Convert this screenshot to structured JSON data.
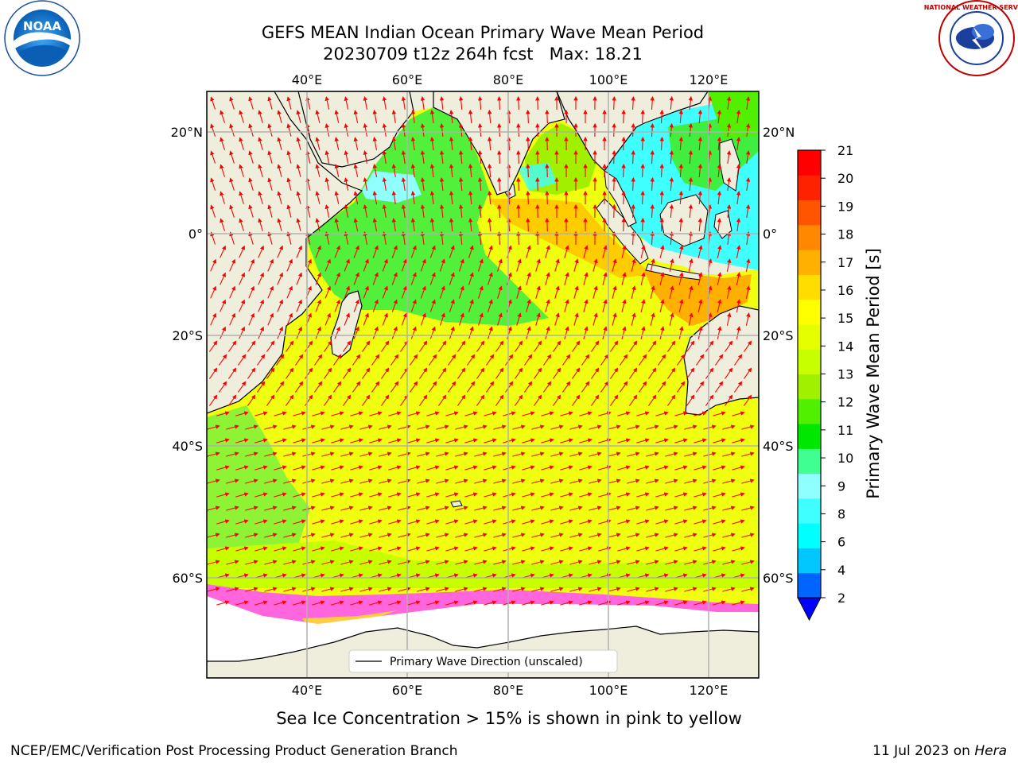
{
  "title": {
    "line1": "GEFS MEAN Indian Ocean Primary Wave Mean Period",
    "line2": "20230709 t12z 264h fcst   Max: 18.21"
  },
  "map": {
    "lon_labels": [
      "40°E",
      "60°E",
      "80°E",
      "100°E",
      "120°E"
    ],
    "lat_labels": [
      "20°N",
      "0°",
      "20°S",
      "40°S",
      "60°S"
    ],
    "legend_label": "Primary Wave Direction (unscaled)"
  },
  "colorbar": {
    "label": "Primary Wave Mean Period [s]",
    "ticks": [
      "2",
      "4",
      "6",
      "8",
      "9",
      "10",
      "11",
      "12",
      "13",
      "14",
      "15",
      "16",
      "17",
      "18",
      "19",
      "20",
      "21"
    ],
    "colors": [
      "#0064ff",
      "#00c8ff",
      "#00ffff",
      "#40ffff",
      "#90ffff",
      "#40ff90",
      "#00e800",
      "#50f000",
      "#a0f000",
      "#c8ff00",
      "#e6ff00",
      "#ffff00",
      "#ffdd00",
      "#ffb000",
      "#ff8800",
      "#ff5500",
      "#ff2200",
      "#ff0000"
    ],
    "extend_color": "#0000ff"
  },
  "notes": {
    "ice": "Sea Ice Concentration > 15% is shown in pink to yellow",
    "producer": "NCEP/EMC/Verification Post Processing Product Generation Branch",
    "date": "11 Jul 2023 on ",
    "machine": "Hera"
  },
  "logos": {
    "noaa_text": "NOAA",
    "nws_text": "NATIONAL WEATHER SERVICE"
  }
}
